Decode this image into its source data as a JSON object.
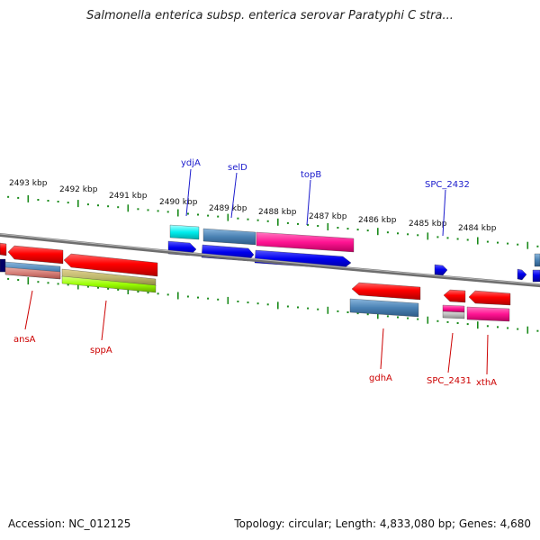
{
  "title": "Salmonella enterica subsp. enterica serovar Paratyphi C stra...",
  "footer": {
    "accession": "Accession: NC_012125",
    "summary": "Topology: circular; Length: 4,833,080 bp; Genes: 4,680"
  },
  "colors": {
    "backbone": "#7a7a7a",
    "tick": "#1a8a1a",
    "label_forward": "#1a1acc",
    "label_reverse": "#cc0000"
  },
  "kbp_labels": [
    "2493 kbp",
    "2492 kbp",
    "2491 kbp",
    "2490 kbp",
    "2489 kbp",
    "2488 kbp",
    "2487 kbp",
    "2486 kbp",
    "2485 kbp",
    "2484 kbp"
  ],
  "genes_forward": [
    "ydjA",
    "selD",
    "topB",
    "SPC_2432"
  ],
  "genes_reverse": [
    "ansA",
    "sppA",
    "gdhA",
    "SPC_2431",
    "xthA"
  ]
}
